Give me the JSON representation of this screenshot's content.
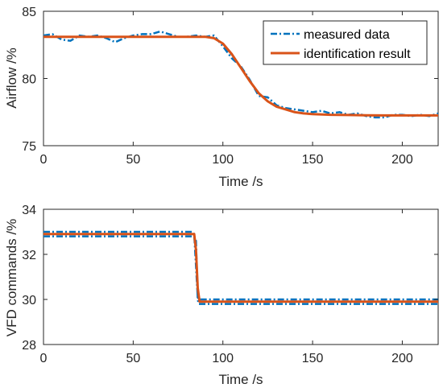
{
  "chart_data": [
    {
      "type": "line",
      "xlabel": "Time /s",
      "ylabel": "Airflow /%",
      "xlim": [
        0,
        220
      ],
      "ylim": [
        75,
        85
      ],
      "xticks": [
        0,
        50,
        100,
        150,
        200
      ],
      "yticks": [
        75,
        80,
        85
      ],
      "legend": {
        "placement": "top-right"
      },
      "series": [
        {
          "name": "measured data",
          "style": "dash-dot",
          "color": "#0072BD",
          "x": [
            0,
            5,
            10,
            15,
            20,
            25,
            30,
            35,
            40,
            45,
            50,
            55,
            60,
            65,
            70,
            75,
            80,
            85,
            90,
            95,
            100,
            105,
            110,
            115,
            120,
            125,
            130,
            135,
            140,
            145,
            150,
            155,
            160,
            165,
            170,
            175,
            180,
            185,
            190,
            195,
            200,
            205,
            210,
            215,
            220
          ],
          "y": [
            83.2,
            83.3,
            82.9,
            82.8,
            83.2,
            83.1,
            83.2,
            83.0,
            82.7,
            83.0,
            83.2,
            83.3,
            83.3,
            83.5,
            83.3,
            83.1,
            83.1,
            83.2,
            83.1,
            83.2,
            82.4,
            81.5,
            80.9,
            79.9,
            78.7,
            78.6,
            78.0,
            77.8,
            77.7,
            77.6,
            77.5,
            77.6,
            77.4,
            77.5,
            77.3,
            77.4,
            77.2,
            77.1,
            77.1,
            77.3,
            77.3,
            77.2,
            77.3,
            77.2,
            77.4
          ]
        },
        {
          "name": "identification result",
          "style": "solid",
          "color": "#D95319",
          "x": [
            0,
            20,
            40,
            60,
            80,
            90,
            95,
            100,
            105,
            110,
            115,
            120,
            125,
            130,
            135,
            140,
            145,
            150,
            160,
            170,
            180,
            190,
            200,
            210,
            220
          ],
          "y": [
            83.1,
            83.1,
            83.1,
            83.1,
            83.1,
            83.1,
            83.0,
            82.6,
            81.8,
            80.8,
            79.8,
            78.9,
            78.3,
            77.9,
            77.7,
            77.5,
            77.4,
            77.35,
            77.3,
            77.28,
            77.26,
            77.25,
            77.25,
            77.25,
            77.25
          ]
        }
      ]
    },
    {
      "type": "line",
      "xlabel": "Time /s",
      "ylabel": "VFD commands /%",
      "xlim": [
        0,
        220
      ],
      "ylim": [
        28,
        34
      ],
      "xticks": [
        0,
        50,
        100,
        150,
        200
      ],
      "yticks": [
        28,
        30,
        32,
        34
      ],
      "series": [
        {
          "style": "dash-dot",
          "color": "#0072BD",
          "x": [
            0,
            83,
            84,
            85,
            86,
            86.5,
            220
          ],
          "y": [
            33.0,
            33.0,
            32.9,
            31.5,
            30.1,
            30.0,
            30.0
          ]
        },
        {
          "style": "dash-dot",
          "color": "#0072BD",
          "x": [
            0,
            84,
            85,
            86,
            86.5,
            220
          ],
          "y": [
            32.8,
            32.8,
            32.6,
            30.0,
            29.8,
            29.8
          ]
        },
        {
          "style": "solid",
          "color": "#D95319",
          "x": [
            0,
            84,
            85,
            86,
            87,
            220
          ],
          "y": [
            32.9,
            32.9,
            32.2,
            30.5,
            29.9,
            29.9
          ]
        }
      ]
    }
  ]
}
